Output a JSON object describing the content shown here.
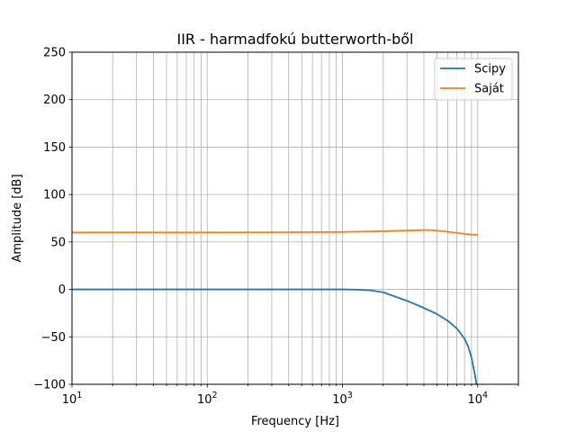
{
  "chart_data": {
    "type": "line",
    "title": "IIR - harmadfokú butterworth-ből",
    "xlabel": "Frequency [Hz]",
    "ylabel": "Amplitude [dB]",
    "x_scale": "log",
    "xlim": [
      10,
      20000
    ],
    "ylim": [
      -100,
      250
    ],
    "x_major_ticks": [
      10,
      100,
      1000,
      10000
    ],
    "x_tick_labels": [
      {
        "base": "10",
        "exp": "1"
      },
      {
        "base": "10",
        "exp": "2"
      },
      {
        "base": "10",
        "exp": "3"
      },
      {
        "base": "10",
        "exp": "4"
      }
    ],
    "y_ticks": [
      -100,
      -50,
      0,
      50,
      100,
      150,
      200,
      250
    ],
    "y_tick_labels": [
      "−100",
      "−50",
      "0",
      "50",
      "100",
      "150",
      "200",
      "250"
    ],
    "grid": "major and minor x, major y",
    "legend_position": "top-right",
    "series": [
      {
        "name": "Scipy",
        "color": "#1f77b4",
        "x": [
          10,
          100,
          500,
          1000,
          1300,
          1600,
          2000,
          2500,
          3000,
          3500,
          4000,
          5000,
          6000,
          7000,
          8000,
          8500,
          9000,
          9300,
          9600,
          9800
        ],
        "y": [
          0,
          0,
          0,
          0,
          -0.3,
          -1,
          -3,
          -8,
          -12,
          -16,
          -19.5,
          -26,
          -33,
          -41,
          -52,
          -60,
          -72,
          -82,
          -92,
          -100
        ]
      },
      {
        "name": "Saját",
        "color": "#ff7f0e",
        "x": [
          10,
          100,
          500,
          1000,
          2000,
          3000,
          4000,
          4500,
          5000,
          6000,
          7000,
          8000,
          9000,
          10000
        ],
        "y": [
          60,
          60,
          60.3,
          60.5,
          61.3,
          62,
          62.5,
          62.4,
          62,
          60.8,
          59.5,
          58.5,
          57.8,
          57.5
        ]
      }
    ]
  }
}
